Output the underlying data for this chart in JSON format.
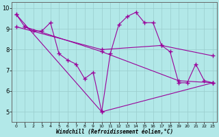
{
  "xlabel": "Windchill (Refroidissement éolien,°C)",
  "background_color": "#b2e8e8",
  "grid_color": "#99cccc",
  "line_color": "#990099",
  "xlim": [
    -0.5,
    23.5
  ],
  "ylim": [
    4.5,
    10.3
  ],
  "yticks": [
    5,
    6,
    7,
    8,
    9,
    10
  ],
  "xticks": [
    0,
    1,
    2,
    3,
    4,
    5,
    6,
    7,
    8,
    9,
    10,
    11,
    12,
    13,
    14,
    15,
    16,
    17,
    18,
    19,
    20,
    21,
    22,
    23
  ],
  "series": [
    {
      "x": [
        0,
        1,
        2,
        3,
        4,
        5,
        6,
        7,
        8,
        9,
        10,
        11,
        12,
        13,
        14,
        15,
        16,
        17,
        18,
        19,
        20,
        21,
        22,
        23
      ],
      "y": [
        9.7,
        9.1,
        8.9,
        8.9,
        9.3,
        7.8,
        7.5,
        7.3,
        6.6,
        6.9,
        5.0,
        7.8,
        9.2,
        9.6,
        9.8,
        9.3,
        9.3,
        8.2,
        7.9,
        6.4,
        6.4,
        7.3,
        6.5,
        6.4
      ],
      "marker": "+"
    },
    {
      "x": [
        0,
        10,
        23
      ],
      "y": [
        9.7,
        5.0,
        6.4
      ],
      "marker": "+"
    },
    {
      "x": [
        0,
        10,
        17,
        23
      ],
      "y": [
        9.1,
        8.0,
        8.2,
        7.7
      ],
      "marker": "+"
    },
    {
      "x": [
        1,
        10,
        19,
        23
      ],
      "y": [
        9.1,
        7.9,
        6.5,
        6.4
      ],
      "marker": "+"
    }
  ]
}
